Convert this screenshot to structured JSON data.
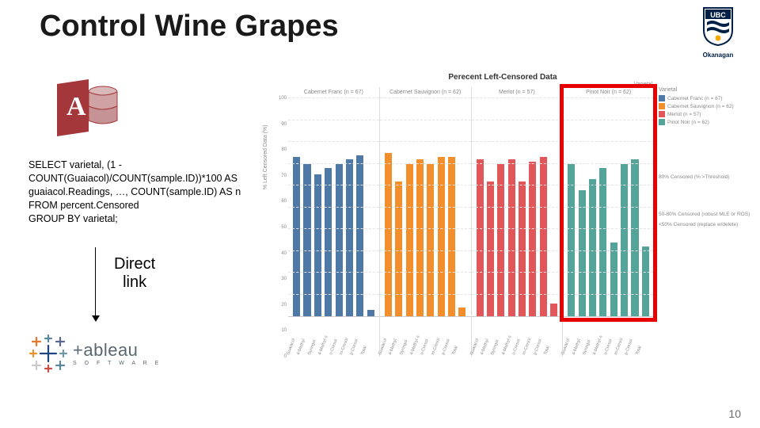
{
  "title": "Control Wine Grapes",
  "ubc": {
    "name": "UBC",
    "campus": "Okanagan",
    "shield_blue": "#002145",
    "shield_gold": "#f2a900"
  },
  "access": {
    "letter": "A",
    "bg": "#a4373a",
    "db_fill": "#d9b8b9"
  },
  "sql": {
    "l1": "SELECT varietal, (1 -",
    "l2": "COUNT(Guaiacol)/COUNT(sample.ID))*100 AS",
    "l3": "guaiacol.Readings, …, COUNT(sample.ID) AS n",
    "l4": "FROM percent.Censored",
    "l5": "GROUP BY varietal;"
  },
  "direct_link": "Direct\nlink",
  "tableau": {
    "name": "+ableau",
    "sub": "S O F T W A R E",
    "cross_colors": [
      "#e8762d",
      "#5b879b",
      "#5c6692",
      "#eb912d",
      "#1f457e",
      "#7099a5",
      "#c8c8c8",
      "#ca4f42",
      "#59879b"
    ]
  },
  "page": "10",
  "chart": {
    "type": "bar",
    "title": "Perecent Left-Censored Data",
    "subtitle": "Varietal",
    "yaxis_label": "% Left Censored Data (%)",
    "ylim": [
      0,
      100
    ],
    "ytick_step": 10,
    "grid_color": "#e3e3e3",
    "threshold_lines": [
      {
        "y": 80,
        "label": "80% Censored (% >Threshold)"
      },
      {
        "y": 50,
        "label": "50-80% Censored (robust MLE or ROS)"
      },
      {
        "y": 50,
        "label2": "<50% Censored (replace w/delete)"
      }
    ],
    "legend_title": "Varietal",
    "legend": [
      {
        "label": "Cabernet Franc (n = 67)",
        "color": "#4e79a7"
      },
      {
        "label": "Cabernet Sauvignon (n = 62)",
        "color": "#f28e2b"
      },
      {
        "label": "Merlot (n = 57)",
        "color": "#e15759"
      },
      {
        "label": "Pinot Noir (n = 62)",
        "color": "#54a49a"
      }
    ],
    "compounds": [
      "Guaiacol",
      "4-Methyl",
      "Syringol",
      "4-Methyl-s",
      "o-Cresol",
      "m-Cresol",
      "p-Cresol",
      "Total"
    ],
    "panels": [
      {
        "name": "Cabernet Franc (n = 67)",
        "color": "#4e79a7",
        "values": [
          73,
          70,
          65,
          68,
          70,
          72,
          74,
          3
        ]
      },
      {
        "name": "Cabernet Sauvignon (n = 62)",
        "color": "#f28e2b",
        "values": [
          75,
          62,
          70,
          72,
          70,
          73,
          73,
          4
        ]
      },
      {
        "name": "Merlot (n = 57)",
        "color": "#e15759",
        "values": [
          72,
          62,
          70,
          72,
          62,
          71,
          73,
          6
        ]
      },
      {
        "name": "Pinot Noir (n = 62)",
        "color": "#54a49a",
        "values": [
          70,
          58,
          63,
          68,
          34,
          70,
          72,
          32
        ]
      }
    ],
    "highlight_panel_index": 3
  }
}
